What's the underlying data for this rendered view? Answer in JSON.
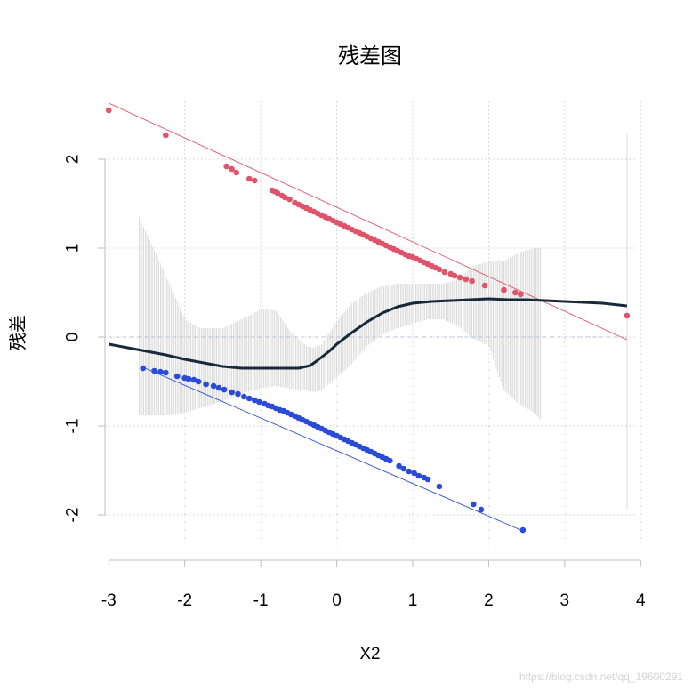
{
  "chart_data": {
    "type": "scatter",
    "title": "残差图",
    "xlabel": "X2",
    "ylabel": "残差",
    "xlim": [
      -3.05,
      3.95
    ],
    "ylim": [
      -2.35,
      2.65
    ],
    "x_ticks": [
      -3,
      -2,
      -1,
      0,
      1,
      2,
      3,
      4
    ],
    "y_ticks": [
      -2,
      -1,
      0,
      1,
      2
    ],
    "grid": true,
    "zero_line": 0,
    "colors": {
      "upper": "#df536b",
      "lower": "#2a4bd7",
      "smooth": "#17293a",
      "ci": "#d3d3d3",
      "grid": "#cccccc",
      "axis": "#bebebe",
      "zero": "#b0c4de"
    },
    "upper_fit": {
      "x": [
        -3.0,
        3.82
      ],
      "y": [
        2.63,
        -0.03
      ]
    },
    "lower_fit": {
      "x": [
        -2.55,
        2.45
      ],
      "y": [
        -0.34,
        -2.18
      ]
    },
    "series": [
      {
        "name": "",
        "role": "upper",
        "x": [
          -3.0,
          -2.25,
          -1.45,
          -1.38,
          -1.32,
          -1.15,
          -1.08,
          -0.85,
          -0.82,
          -0.78,
          -0.72,
          -0.68,
          -0.62,
          -0.55,
          -0.5,
          -0.45,
          -0.4,
          -0.35,
          -0.3,
          -0.25,
          -0.2,
          -0.15,
          -0.1,
          -0.05,
          0.0,
          0.05,
          0.1,
          0.15,
          0.2,
          0.25,
          0.3,
          0.35,
          0.4,
          0.45,
          0.5,
          0.55,
          0.6,
          0.65,
          0.7,
          0.75,
          0.8,
          0.85,
          0.9,
          0.95,
          1.0,
          1.05,
          1.1,
          1.15,
          1.2,
          1.25,
          1.3,
          1.35,
          1.42,
          1.5,
          1.55,
          1.62,
          1.7,
          1.78,
          1.95,
          2.2,
          2.35,
          2.42,
          3.82
        ],
        "y": [
          2.55,
          2.27,
          1.92,
          1.89,
          1.85,
          1.78,
          1.76,
          1.65,
          1.64,
          1.62,
          1.59,
          1.57,
          1.55,
          1.51,
          1.49,
          1.47,
          1.45,
          1.43,
          1.41,
          1.39,
          1.37,
          1.35,
          1.33,
          1.31,
          1.29,
          1.27,
          1.25,
          1.23,
          1.21,
          1.19,
          1.17,
          1.15,
          1.13,
          1.11,
          1.09,
          1.07,
          1.05,
          1.03,
          1.01,
          0.99,
          0.97,
          0.95,
          0.93,
          0.91,
          0.9,
          0.88,
          0.86,
          0.84,
          0.82,
          0.8,
          0.78,
          0.76,
          0.73,
          0.71,
          0.69,
          0.67,
          0.65,
          0.63,
          0.58,
          0.53,
          0.5,
          0.48,
          0.24
        ]
      },
      {
        "name": "",
        "role": "lower",
        "x": [
          -2.55,
          -2.4,
          -2.32,
          -2.25,
          -2.1,
          -2.0,
          -1.95,
          -1.88,
          -1.82,
          -1.72,
          -1.62,
          -1.55,
          -1.48,
          -1.38,
          -1.3,
          -1.22,
          -1.15,
          -1.08,
          -1.02,
          -0.95,
          -0.9,
          -0.85,
          -0.8,
          -0.75,
          -0.7,
          -0.65,
          -0.6,
          -0.55,
          -0.5,
          -0.45,
          -0.4,
          -0.35,
          -0.3,
          -0.25,
          -0.2,
          -0.15,
          -0.1,
          -0.05,
          0.0,
          0.05,
          0.1,
          0.15,
          0.2,
          0.25,
          0.3,
          0.35,
          0.4,
          0.45,
          0.5,
          0.55,
          0.6,
          0.65,
          0.7,
          0.82,
          0.88,
          0.95,
          1.02,
          1.08,
          1.15,
          1.2,
          1.35,
          1.8,
          1.9,
          2.45
        ],
        "y": [
          -0.35,
          -0.38,
          -0.39,
          -0.4,
          -0.44,
          -0.46,
          -0.47,
          -0.48,
          -0.5,
          -0.53,
          -0.55,
          -0.57,
          -0.59,
          -0.62,
          -0.64,
          -0.67,
          -0.69,
          -0.71,
          -0.73,
          -0.75,
          -0.77,
          -0.78,
          -0.8,
          -0.82,
          -0.83,
          -0.85,
          -0.87,
          -0.89,
          -0.91,
          -0.93,
          -0.95,
          -0.97,
          -0.99,
          -1.01,
          -1.03,
          -1.05,
          -1.07,
          -1.09,
          -1.11,
          -1.13,
          -1.15,
          -1.17,
          -1.19,
          -1.21,
          -1.23,
          -1.25,
          -1.27,
          -1.29,
          -1.31,
          -1.33,
          -1.35,
          -1.37,
          -1.39,
          -1.45,
          -1.48,
          -1.51,
          -1.53,
          -1.56,
          -1.58,
          -1.6,
          -1.68,
          -1.88,
          -1.94,
          -2.17
        ]
      },
      {
        "name": "",
        "role": "smooth",
        "x": [
          -3.0,
          -2.75,
          -2.5,
          -2.25,
          -2.0,
          -1.75,
          -1.5,
          -1.25,
          -1.0,
          -0.75,
          -0.5,
          -0.35,
          -0.25,
          -0.1,
          0.0,
          0.2,
          0.4,
          0.6,
          0.8,
          1.0,
          1.25,
          1.5,
          1.75,
          2.0,
          2.25,
          2.5,
          2.75,
          3.0,
          3.5,
          3.82
        ],
        "y": [
          -0.08,
          -0.12,
          -0.16,
          -0.2,
          -0.25,
          -0.29,
          -0.33,
          -0.35,
          -0.35,
          -0.35,
          -0.35,
          -0.32,
          -0.26,
          -0.16,
          -0.08,
          0.05,
          0.17,
          0.27,
          0.34,
          0.38,
          0.4,
          0.41,
          0.42,
          0.43,
          0.42,
          0.42,
          0.41,
          0.4,
          0.38,
          0.35
        ]
      }
    ],
    "ci_band": {
      "x": [
        -2.6,
        -2.2,
        -2.0,
        -1.8,
        -1.5,
        -1.2,
        -1.0,
        -0.8,
        -0.6,
        -0.4,
        -0.3,
        -0.2,
        0.0,
        0.2,
        0.4,
        0.6,
        0.8,
        1.0,
        1.2,
        1.4,
        1.6,
        1.8,
        2.0,
        2.2,
        2.4,
        2.6,
        2.7,
        3.82
      ],
      "lo": [
        -0.88,
        -0.88,
        -0.85,
        -0.8,
        -0.72,
        -0.62,
        -0.58,
        -0.55,
        -0.58,
        -0.6,
        -0.62,
        -0.6,
        -0.45,
        -0.3,
        -0.1,
        0.03,
        0.1,
        0.15,
        0.2,
        0.2,
        0.12,
        -0.02,
        -0.1,
        -0.6,
        -0.75,
        -0.85,
        -0.95,
        -1.95
      ],
      "hi": [
        1.35,
        0.6,
        0.2,
        0.1,
        0.1,
        0.22,
        0.31,
        0.3,
        0.05,
        -0.1,
        -0.12,
        -0.08,
        0.18,
        0.38,
        0.5,
        0.57,
        0.6,
        0.6,
        0.6,
        0.6,
        0.65,
        0.8,
        0.85,
        0.85,
        0.95,
        1.0,
        1.0,
        2.28
      ]
    },
    "watermark": "https://blog.csdn.net/qq_19600291"
  }
}
